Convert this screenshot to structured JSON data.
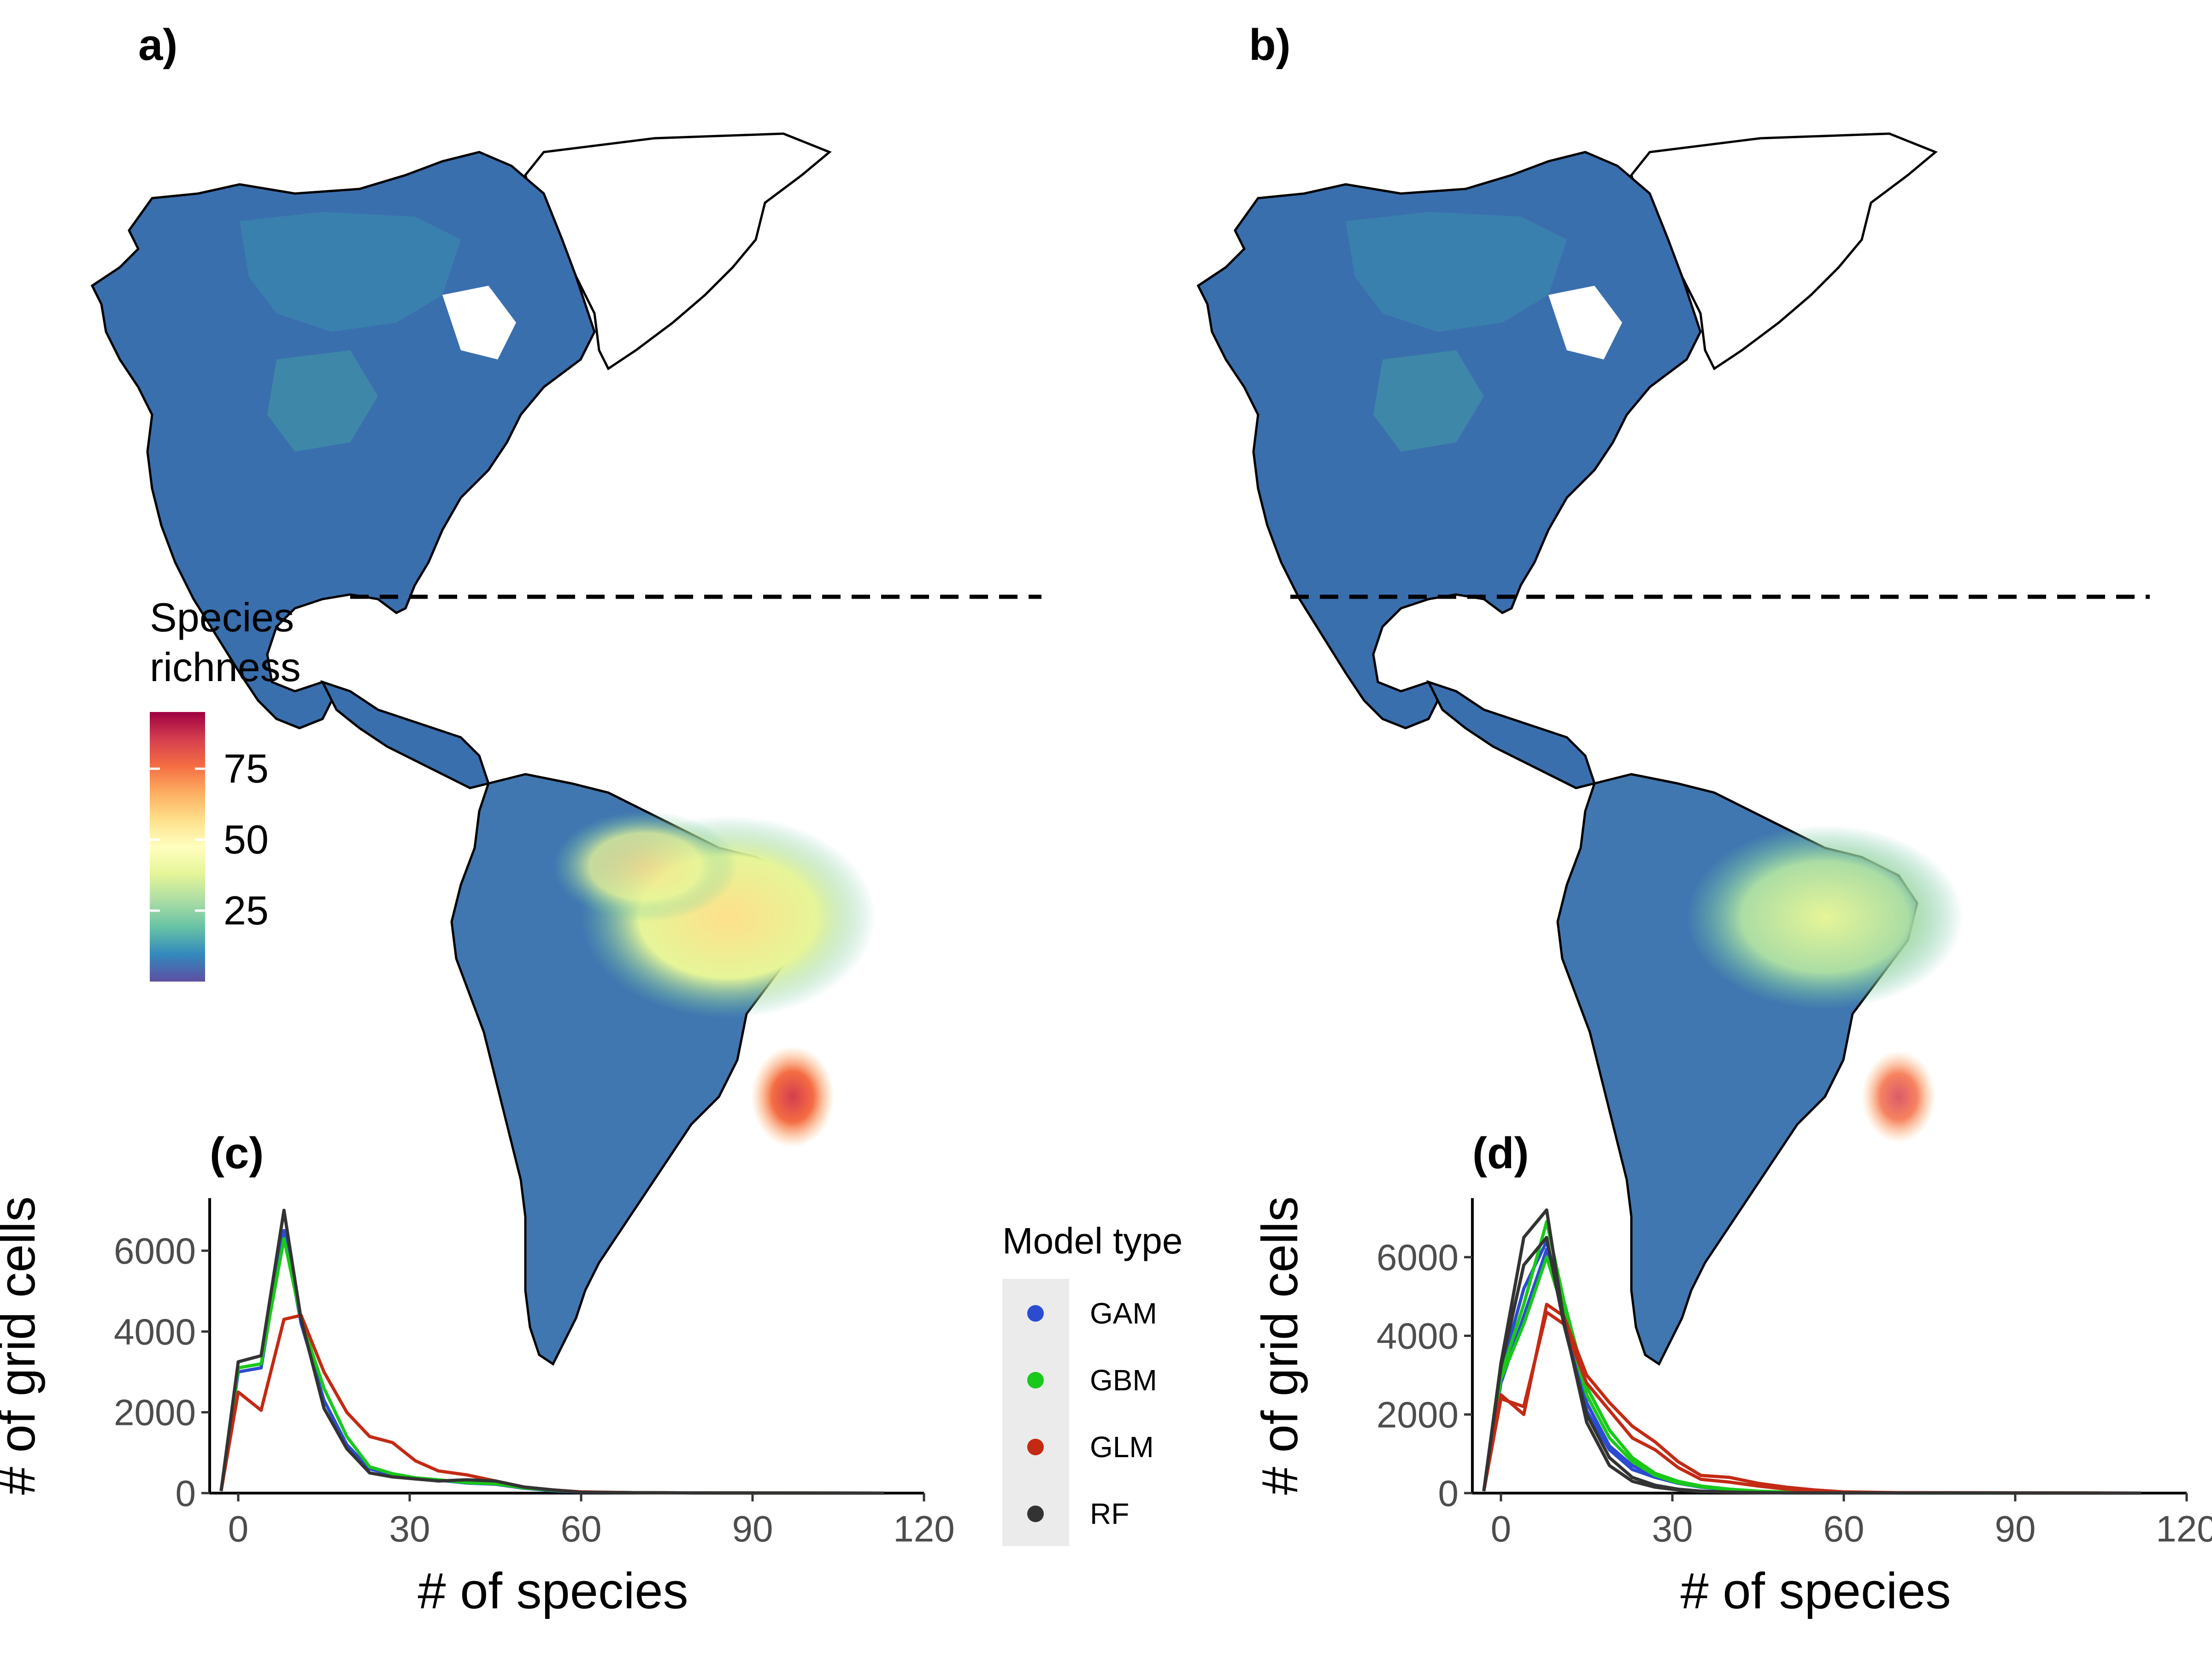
{
  "panels": {
    "a": "a)",
    "b": "b)",
    "c": "(c)",
    "d": "(d)"
  },
  "colorbar": {
    "title_line1": "Species",
    "title_line2": "richness",
    "ticks": [
      "25",
      "50",
      "75"
    ],
    "tick_values": [
      25,
      50,
      75
    ],
    "range": [
      0,
      95
    ],
    "colors": [
      "#5e4fa2",
      "#3288bd",
      "#66c2a5",
      "#abdda4",
      "#e6f598",
      "#ffffbf",
      "#fee08b",
      "#fdae61",
      "#f46d43",
      "#d53e4f",
      "#9e0142"
    ]
  },
  "legend": {
    "title": "Model type",
    "items": [
      {
        "label": "GAM",
        "color": "#2b4bd1"
      },
      {
        "label": "GBM",
        "color": "#19c919"
      },
      {
        "label": "GLM",
        "color": "#c32a14"
      },
      {
        "label": "RF",
        "color": "#333333"
      }
    ]
  },
  "chart_data": [
    {
      "type": "line",
      "panel": "(c)",
      "xlabel": "# of species",
      "ylabel": "# of grid cells",
      "xlim": [
        -5,
        120
      ],
      "ylim": [
        0,
        7300
      ],
      "xticks": [
        0,
        30,
        60,
        90,
        120
      ],
      "yticks": [
        0,
        2000,
        4000,
        6000
      ],
      "grid": false,
      "series": [
        {
          "name": "GAM",
          "color": "#2b4bd1",
          "x": [
            -3,
            0,
            4,
            8,
            11,
            15,
            19,
            23,
            27,
            31,
            35,
            40,
            45,
            50,
            55,
            60,
            70,
            80,
            113
          ],
          "y": [
            50,
            3000,
            3100,
            6500,
            4200,
            2300,
            1200,
            600,
            450,
            350,
            320,
            250,
            220,
            120,
            60,
            20,
            10,
            5,
            0
          ]
        },
        {
          "name": "GBM",
          "color": "#19c919",
          "x": [
            -3,
            0,
            4,
            8,
            11,
            15,
            19,
            23,
            27,
            31,
            35,
            40,
            45,
            50,
            55,
            60,
            70,
            80,
            113
          ],
          "y": [
            50,
            3100,
            3200,
            6300,
            4300,
            2600,
            1400,
            650,
            480,
            380,
            330,
            260,
            230,
            130,
            70,
            25,
            10,
            5,
            0
          ]
        },
        {
          "name": "GLM",
          "color": "#c32a14",
          "x": [
            -3,
            0,
            4,
            8,
            11,
            15,
            19,
            23,
            27,
            31,
            35,
            40,
            45,
            50,
            55,
            60,
            70,
            80,
            113
          ],
          "y": [
            50,
            2500,
            2050,
            4300,
            4400,
            3000,
            2000,
            1400,
            1250,
            800,
            550,
            450,
            300,
            150,
            80,
            30,
            10,
            5,
            0
          ]
        },
        {
          "name": "RF",
          "color": "#333333",
          "x": [
            -3,
            0,
            4,
            8,
            11,
            15,
            19,
            23,
            27,
            31,
            35,
            40,
            45,
            50,
            55,
            60,
            70,
            80,
            113
          ],
          "y": [
            50,
            3250,
            3400,
            7000,
            4300,
            2100,
            1100,
            500,
            400,
            350,
            300,
            330,
            300,
            150,
            80,
            20,
            10,
            5,
            0
          ]
        }
      ]
    },
    {
      "type": "line",
      "panel": "(d)",
      "xlabel": "# of species",
      "ylabel": "# of grid cells",
      "xlim": [
        -5,
        120
      ],
      "ylim": [
        0,
        7500
      ],
      "xticks": [
        0,
        30,
        60,
        90,
        120
      ],
      "yticks": [
        0,
        2000,
        4000,
        6000
      ],
      "grid": false,
      "series": [
        {
          "name": "GAM",
          "color": "#2b4bd1",
          "x": [
            -3,
            0,
            4,
            8,
            11,
            15,
            19,
            23,
            27,
            31,
            35,
            40,
            45,
            50,
            60,
            70,
            112
          ],
          "y": [
            50,
            2800,
            4500,
            6200,
            4500,
            2100,
            1100,
            600,
            400,
            250,
            150,
            80,
            40,
            20,
            10,
            5,
            0
          ]
        },
        {
          "name": "GAM",
          "color": "#2b4bd1",
          "x": [
            -3,
            0,
            4,
            8,
            11,
            15,
            19,
            23,
            27,
            31,
            35,
            40,
            45,
            50,
            60,
            70,
            112
          ],
          "y": [
            50,
            3100,
            5200,
            6400,
            4700,
            2300,
            1200,
            700,
            450,
            280,
            170,
            90,
            45,
            20,
            10,
            5,
            0
          ]
        },
        {
          "name": "GBM",
          "color": "#19c919",
          "x": [
            -3,
            0,
            4,
            8,
            11,
            15,
            19,
            23,
            27,
            31,
            35,
            40,
            45,
            50,
            60,
            70,
            112
          ],
          "y": [
            50,
            3000,
            4800,
            6900,
            4900,
            2700,
            1600,
            900,
            500,
            300,
            180,
            100,
            50,
            25,
            10,
            5,
            0
          ]
        },
        {
          "name": "GBM",
          "color": "#19c919",
          "x": [
            -3,
            0,
            4,
            8,
            11,
            15,
            19,
            23,
            27,
            31,
            35,
            40,
            45,
            50,
            60,
            70,
            112
          ],
          "y": [
            50,
            2900,
            4300,
            6000,
            4600,
            2500,
            1400,
            800,
            450,
            260,
            160,
            90,
            45,
            20,
            10,
            5,
            0
          ]
        },
        {
          "name": "GLM",
          "color": "#c32a14",
          "x": [
            -3,
            0,
            4,
            8,
            11,
            15,
            19,
            23,
            27,
            31,
            35,
            40,
            45,
            50,
            55,
            60,
            70,
            112
          ],
          "y": [
            50,
            2500,
            2000,
            4800,
            4500,
            3000,
            2300,
            1700,
            1300,
            800,
            450,
            400,
            250,
            150,
            80,
            30,
            10,
            0
          ]
        },
        {
          "name": "GLM",
          "color": "#c32a14",
          "x": [
            -3,
            0,
            4,
            8,
            11,
            15,
            19,
            23,
            27,
            31,
            35,
            40,
            45,
            50,
            55,
            60,
            70,
            112
          ],
          "y": [
            50,
            2400,
            2200,
            4600,
            4300,
            2800,
            2100,
            1400,
            1100,
            650,
            350,
            280,
            180,
            100,
            60,
            20,
            10,
            0
          ]
        },
        {
          "name": "RF",
          "color": "#333333",
          "x": [
            -3,
            0,
            4,
            8,
            11,
            15,
            19,
            23,
            27,
            31,
            35,
            40,
            45,
            50,
            60,
            70,
            112
          ],
          "y": [
            50,
            3300,
            6500,
            7200,
            4400,
            1800,
            700,
            300,
            150,
            80,
            40,
            20,
            10,
            5,
            5,
            5,
            0
          ]
        },
        {
          "name": "RF",
          "color": "#333333",
          "x": [
            -3,
            0,
            4,
            8,
            11,
            15,
            19,
            23,
            27,
            31,
            35,
            40,
            45,
            50,
            60,
            70,
            112
          ],
          "y": [
            50,
            3200,
            5800,
            6500,
            4300,
            2000,
            900,
            400,
            200,
            100,
            50,
            25,
            10,
            5,
            5,
            5,
            0
          ]
        }
      ]
    }
  ]
}
